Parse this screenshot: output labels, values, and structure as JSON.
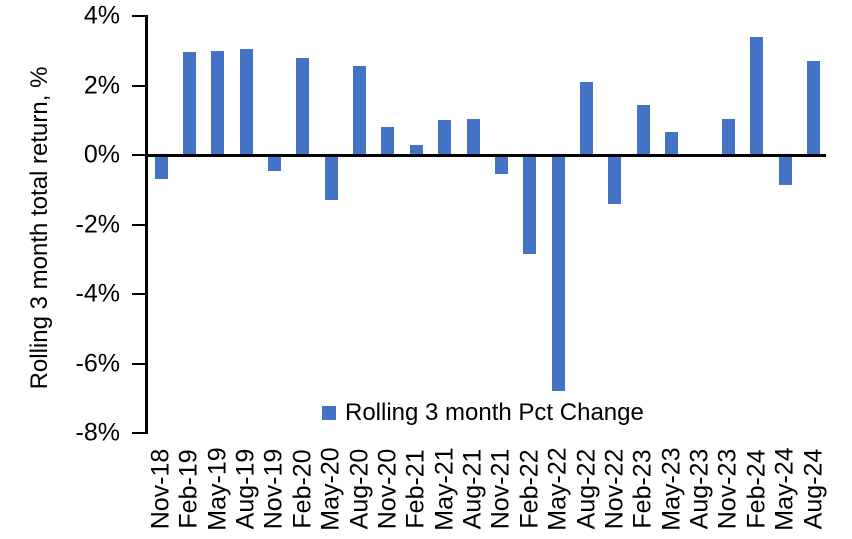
{
  "chart_data": {
    "type": "bar",
    "title": "",
    "xlabel": "",
    "ylabel": "Rolling 3 month total return, %",
    "ylim": [
      -8,
      4
    ],
    "ytick_values": [
      4,
      2,
      0,
      -2,
      -4,
      -6,
      -8
    ],
    "ytick_labels": [
      "4%",
      "2%",
      "0%",
      "-2%",
      "-4%",
      "-6%",
      "-8%"
    ],
    "grid": false,
    "legend_position": "bottom-center-inside",
    "categories": [
      "Nov-18",
      "Feb-19",
      "May-19",
      "Aug-19",
      "Nov-19",
      "Feb-20",
      "May-20",
      "Aug-20",
      "Nov-20",
      "Feb-21",
      "May-21",
      "Aug-21",
      "Nov-21",
      "Feb-22",
      "May-22",
      "Aug-22",
      "Nov-22",
      "Feb-23",
      "May-23",
      "Aug-23",
      "Nov-23",
      "Feb-24",
      "May-24",
      "Aug-24"
    ],
    "series": [
      {
        "name": "Rolling 3 month Pct Change",
        "values": [
          -0.7,
          2.95,
          3.0,
          3.05,
          -0.45,
          2.8,
          -1.3,
          2.55,
          0.8,
          0.3,
          1.0,
          1.05,
          -0.55,
          -2.85,
          -6.8,
          2.1,
          -1.4,
          1.45,
          0.65,
          0.0,
          1.05,
          3.4,
          -0.85,
          2.7
        ]
      }
    ],
    "colors": {
      "bar": "#4472C4",
      "axis": "#000000",
      "text": "#000000",
      "background": "#FFFFFF"
    }
  }
}
